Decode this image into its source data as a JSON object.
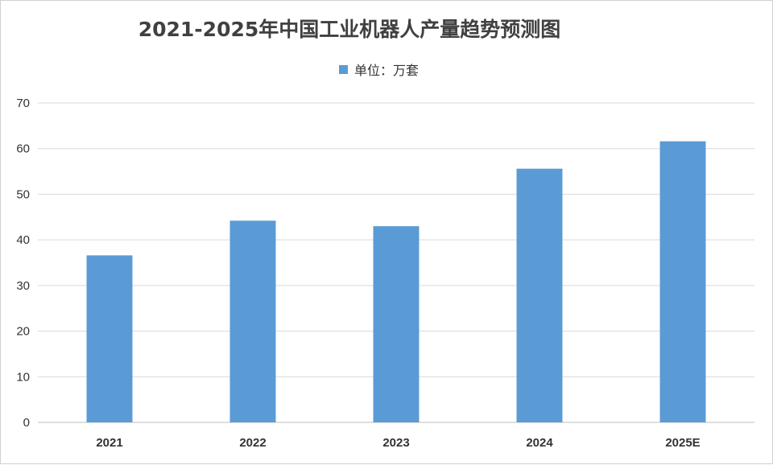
{
  "chart_data": {
    "type": "bar",
    "title": "2021-2025年中国工业机器人产量趋势预测图",
    "legend": "单位：万套",
    "categories": [
      "2021",
      "2022",
      "2023",
      "2024",
      "2025E"
    ],
    "series": [
      {
        "name": "单位：万套",
        "values": [
          36.6,
          44.2,
          43.0,
          55.6,
          61.6
        ],
        "color": "#5b9bd5"
      }
    ],
    "ylim": [
      0,
      70
    ],
    "yticks": [
      0,
      10,
      20,
      30,
      40,
      50,
      60,
      70
    ],
    "grid": true,
    "legend_position": "top"
  }
}
